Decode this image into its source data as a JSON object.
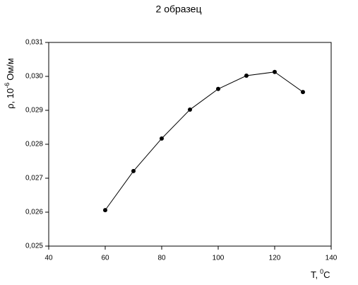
{
  "chart_data": {
    "type": "line",
    "title": "2 образец",
    "y_label": {
      "text": "ρ, 10",
      "sup": "-6",
      "unit": "Ом/м"
    },
    "x_label": {
      "text": "T,",
      "sup": "0",
      "unit": "C"
    },
    "x": [
      60,
      70,
      80,
      90,
      100,
      110,
      120,
      130
    ],
    "series": [
      {
        "color": "#000000",
        "values": [
          0.02606,
          0.02721,
          0.02817,
          0.02902,
          0.02963,
          0.03002,
          0.03013,
          0.02954
        ]
      }
    ],
    "xlim": [
      40,
      140
    ],
    "xticks": [
      40,
      60,
      80,
      100,
      120,
      140
    ],
    "ylim": [
      0.025,
      0.031
    ],
    "yticks": [
      {
        "value": 0.025,
        "label": "0,025"
      },
      {
        "value": 0.026,
        "label": "0,026"
      },
      {
        "value": 0.027,
        "label": "0,027"
      },
      {
        "value": 0.028,
        "label": "0,028"
      },
      {
        "value": 0.029,
        "label": "0,029"
      },
      {
        "value": 0.03,
        "label": "0,030"
      },
      {
        "value": 0.031,
        "label": "0,031"
      }
    ],
    "grid": false
  }
}
